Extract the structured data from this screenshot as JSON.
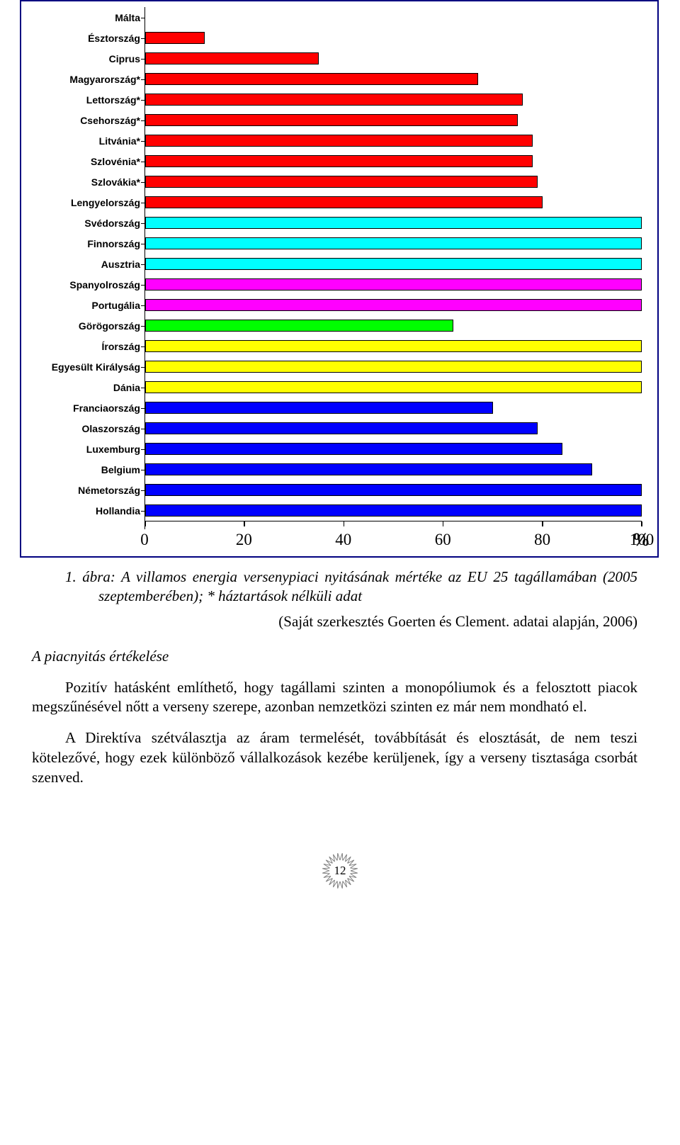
{
  "chart": {
    "type": "bar-horizontal",
    "xmin": 0,
    "xmax": 100,
    "xtick_step": 20,
    "xticks": [
      0,
      20,
      40,
      60,
      80,
      100
    ],
    "x_unit": "%",
    "axis_color": "#000000",
    "background_color": "#ffffff",
    "frame_border_color": "#000080",
    "label_font": "Arial",
    "label_fontsize": 14,
    "label_fontweight": 700,
    "tick_label_fontsize": 23,
    "bar_border_color": "#000000",
    "bar_border_width": 1.5,
    "bars": [
      {
        "label": "Málta",
        "value": 0,
        "color": "#ff0000"
      },
      {
        "label": "Észtország",
        "value": 12,
        "color": "#ff0000"
      },
      {
        "label": "Ciprus",
        "value": 35,
        "color": "#ff0000"
      },
      {
        "label": "Magyarország*",
        "value": 67,
        "color": "#ff0000"
      },
      {
        "label": "Lettország*",
        "value": 76,
        "color": "#ff0000"
      },
      {
        "label": "Csehország*",
        "value": 75,
        "color": "#ff0000"
      },
      {
        "label": "Litvánia*",
        "value": 78,
        "color": "#ff0000"
      },
      {
        "label": "Szlovénia*",
        "value": 78,
        "color": "#ff0000"
      },
      {
        "label": "Szlovákia*",
        "value": 79,
        "color": "#ff0000"
      },
      {
        "label": "Lengyelország",
        "value": 80,
        "color": "#ff0000"
      },
      {
        "label": "Svédország",
        "value": 100,
        "color": "#00ffff"
      },
      {
        "label": "Finnország",
        "value": 100,
        "color": "#00ffff"
      },
      {
        "label": "Ausztria",
        "value": 100,
        "color": "#00ffff"
      },
      {
        "label": "Spanyolroszág",
        "value": 100,
        "color": "#ff00ff"
      },
      {
        "label": "Portugália",
        "value": 100,
        "color": "#ff00ff"
      },
      {
        "label": "Görögország",
        "value": 62,
        "color": "#00ff00"
      },
      {
        "label": "Írország",
        "value": 100,
        "color": "#ffff00"
      },
      {
        "label": "Egyesült Királyság",
        "value": 100,
        "color": "#ffff00"
      },
      {
        "label": "Dánia",
        "value": 100,
        "color": "#ffff00"
      },
      {
        "label": "Franciaország",
        "value": 70,
        "color": "#0000ff"
      },
      {
        "label": "Olaszország",
        "value": 79,
        "color": "#0000ff"
      },
      {
        "label": "Luxemburg",
        "value": 84,
        "color": "#0000ff"
      },
      {
        "label": "Belgium",
        "value": 90,
        "color": "#0000ff"
      },
      {
        "label": "Németország",
        "value": 100,
        "color": "#0000ff"
      },
      {
        "label": "Hollandia",
        "value": 100,
        "color": "#0000ff"
      }
    ]
  },
  "caption_prefix": "1. ábra:",
  "caption_rest": " A villamos energia versenypiaci nyitásának mértéke az EU 25 tagállamában (2005 szeptemberében); * háztartások nélküli adat",
  "source": "(Saját szerkesztés Goerten és Clement. adatai alapján, 2006)",
  "subheading": "A piacnyitás értékelése",
  "paragraphs": [
    "Pozitív hatásként említhető, hogy tagállami szinten a monopóliumok és a felosztott piacok megszűnésével nőtt a verseny szerepe, azonban nemzetközi szinten ez már nem mondható el.",
    "A Direktíva szétválasztja az áram termelését, továbbítását és elosztását, de nem teszi kötelezővé, hogy ezek különböző vállalkozások kezébe kerüljenek, így a verseny tisztasága csorbát szenved."
  ],
  "page_number": "12"
}
